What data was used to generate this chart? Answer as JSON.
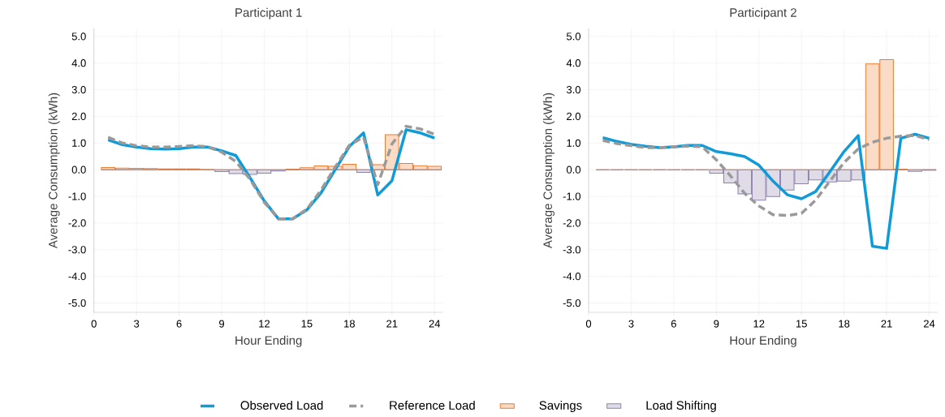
{
  "chart_data": [
    {
      "type": "line",
      "title": "Participant 1",
      "xlabel": "Hour Ending",
      "ylabel": "Average Consumption (kWh)",
      "x": [
        1,
        2,
        3,
        4,
        5,
        6,
        7,
        8,
        9,
        10,
        11,
        12,
        13,
        14,
        15,
        16,
        17,
        18,
        19,
        20,
        21,
        22,
        23,
        24
      ],
      "xlim": [
        0,
        24.6
      ],
      "ylim": [
        -5.35,
        5.3
      ],
      "xticks": [
        0,
        3,
        6,
        9,
        12,
        15,
        18,
        21,
        24
      ],
      "yticks": [
        {
          "value": -5,
          "label": "-5.0"
        },
        {
          "value": -4,
          "label": "-4.0"
        },
        {
          "value": -3,
          "label": "-3.0"
        },
        {
          "value": -2,
          "label": "-2.0"
        },
        {
          "value": -1,
          "label": "-1.0"
        },
        {
          "value": 0,
          "label": "0.0"
        },
        {
          "value": 1,
          "label": "1.0"
        },
        {
          "value": 2,
          "label": "2.0"
        },
        {
          "value": 3,
          "label": "3.0"
        },
        {
          "value": 4,
          "label": "4.0"
        },
        {
          "value": 5,
          "label": "5.0"
        }
      ],
      "grid": true,
      "legend": "bottom",
      "series": [
        {
          "name": "Observed Load",
          "line_style": "solid",
          "color": "#0e9bd8",
          "values": [
            1.12,
            0.94,
            0.85,
            0.79,
            0.77,
            0.79,
            0.85,
            0.85,
            0.71,
            0.53,
            -0.3,
            -1.17,
            -1.84,
            -1.84,
            -1.51,
            -0.87,
            0,
            0.87,
            1.38,
            -0.95,
            -0.41,
            1.5,
            1.38,
            1.19
          ]
        },
        {
          "name": "Reference Load",
          "line_style": "dashed",
          "color": "#9a9a9a",
          "values": [
            1.22,
            1.0,
            0.9,
            0.85,
            0.85,
            0.87,
            0.9,
            0.87,
            0.66,
            0.31,
            -0.36,
            -1.22,
            -1.84,
            -1.84,
            -1.48,
            -0.77,
            0.1,
            0.92,
            1.22,
            -0.56,
            0.97,
            1.63,
            1.53,
            1.33
          ]
        },
        {
          "name": "Savings",
          "type": "bar",
          "color": "#ed7d31",
          "values": [
            0.08,
            0.06,
            0.05,
            0.04,
            0.03,
            0.03,
            0.03,
            0.01,
            0,
            0,
            0,
            0,
            0,
            0.02,
            0.07,
            0.14,
            0.13,
            0.2,
            0,
            0.19,
            1.31,
            0.23,
            0.15,
            0.13
          ]
        },
        {
          "name": "Load Shifting",
          "type": "bar",
          "color": "#8e82ae",
          "values": [
            0,
            0,
            0,
            0,
            0,
            0,
            0,
            0,
            -0.07,
            -0.15,
            -0.18,
            -0.13,
            -0.05,
            0,
            0,
            0,
            0,
            0,
            -0.1,
            0,
            0,
            0,
            0,
            0
          ]
        }
      ]
    },
    {
      "type": "line",
      "title": "Participant 2",
      "xlabel": "Hour Ending",
      "ylabel": "Average Consumption (kWh)",
      "x": [
        1,
        2,
        3,
        4,
        5,
        6,
        7,
        8,
        9,
        10,
        11,
        12,
        13,
        14,
        15,
        16,
        17,
        18,
        19,
        20,
        21,
        22,
        23,
        24
      ],
      "xlim": [
        0,
        24.6
      ],
      "ylim": [
        -5.35,
        5.3
      ],
      "xticks": [
        0,
        3,
        6,
        9,
        12,
        15,
        18,
        21,
        24
      ],
      "yticks": [
        {
          "value": -5,
          "label": "-5.0"
        },
        {
          "value": -4,
          "label": "-4.0"
        },
        {
          "value": -3,
          "label": "-3.0"
        },
        {
          "value": -2,
          "label": "-2.0"
        },
        {
          "value": -1,
          "label": "-1.0"
        },
        {
          "value": 0,
          "label": "0.0"
        },
        {
          "value": 1,
          "label": "1.0"
        },
        {
          "value": 2,
          "label": "2.0"
        },
        {
          "value": 3,
          "label": "3.0"
        },
        {
          "value": 4,
          "label": "4.0"
        },
        {
          "value": 5,
          "label": "5.0"
        }
      ],
      "grid": true,
      "series": [
        {
          "line_style": "solid",
          "color": "#0e9bd8",
          "values": [
            1.2,
            1.06,
            0.95,
            0.88,
            0.83,
            0.86,
            0.91,
            0.91,
            0.68,
            0.6,
            0.49,
            0.17,
            -0.43,
            -0.94,
            -1.09,
            -0.82,
            -0.08,
            0.68,
            1.28,
            -2.87,
            -2.95,
            1.18,
            1.33,
            1.18
          ]
        },
        {
          "line_style": "dashed",
          "color": "#9a9a9a",
          "values": [
            1.1,
            0.98,
            0.9,
            0.83,
            0.83,
            0.86,
            0.88,
            0.86,
            0.37,
            -0.23,
            -0.89,
            -1.36,
            -1.69,
            -1.72,
            -1.64,
            -1.14,
            -0.43,
            0.27,
            0.78,
            1.03,
            1.18,
            1.26,
            1.28,
            1.13
          ]
        },
        {
          "type": "bar",
          "color": "#ed7d31",
          "values": [
            0,
            0,
            0,
            0,
            0,
            0,
            0,
            0,
            0,
            0,
            0,
            0,
            0,
            0,
            0,
            0,
            0,
            0,
            0,
            3.97,
            4.13,
            0.02,
            0,
            0
          ]
        },
        {
          "type": "bar",
          "color": "#8e82ae",
          "values": [
            0,
            0,
            0,
            0,
            0,
            0,
            0,
            0,
            -0.13,
            -0.5,
            -0.91,
            -1.14,
            -1.01,
            -0.76,
            -0.53,
            -0.38,
            -0.46,
            -0.43,
            -0.38,
            0,
            0,
            0,
            -0.06,
            -0.02
          ]
        }
      ]
    }
  ]
}
